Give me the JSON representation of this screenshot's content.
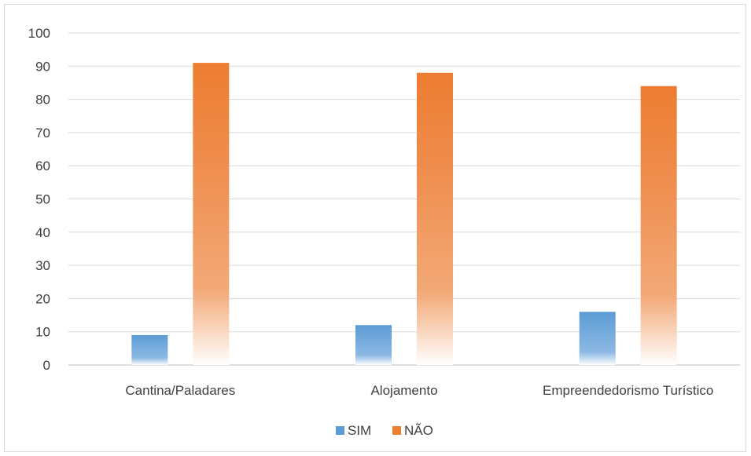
{
  "chart_data": {
    "type": "bar",
    "categories": [
      "Cantina/Paladares",
      "Alojamento",
      "Empreendedorismo Turístico"
    ],
    "series": [
      {
        "name": "SIM",
        "values": [
          9,
          12,
          16
        ],
        "color": "#5b9bd5"
      },
      {
        "name": "NÃO",
        "values": [
          91,
          88,
          84
        ],
        "color": "#ed7d31"
      }
    ],
    "ylim": [
      0,
      100
    ],
    "yticks": [
      "0",
      "10",
      "20",
      "30",
      "40",
      "50",
      "60",
      "70",
      "80",
      "90",
      "100"
    ],
    "grid": true,
    "legend_position": "bottom"
  }
}
